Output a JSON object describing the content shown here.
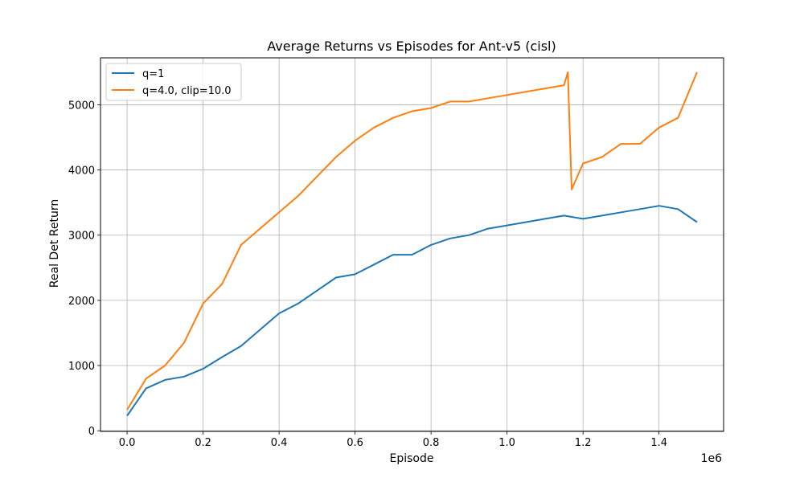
{
  "chart_data": {
    "type": "line",
    "title": "Average Returns vs Episodes for Ant-v5 (cisl)",
    "xlabel": "Episode",
    "ylabel": "Real Det Return",
    "x_offset_label": "1e6",
    "xlim": [
      -70000,
      1570000
    ],
    "ylim": [
      -10,
      5720
    ],
    "x_ticks": [
      0,
      200000,
      400000,
      600000,
      800000,
      1000000,
      1200000,
      1400000
    ],
    "x_tick_labels": [
      "0.0",
      "0.2",
      "0.4",
      "0.6",
      "0.8",
      "1.0",
      "1.2",
      "1.4"
    ],
    "y_ticks": [
      0,
      1000,
      2000,
      3000,
      4000,
      5000
    ],
    "y_tick_labels": [
      "0",
      "1000",
      "2000",
      "3000",
      "4000",
      "5000"
    ],
    "grid": true,
    "legend_position": "top-left",
    "series": [
      {
        "name": "q=1",
        "color": "#1f77b4",
        "x": [
          0,
          50000,
          100000,
          150000,
          200000,
          250000,
          300000,
          350000,
          400000,
          450000,
          500000,
          550000,
          600000,
          650000,
          700000,
          750000,
          800000,
          850000,
          900000,
          950000,
          1000000,
          1050000,
          1100000,
          1150000,
          1200000,
          1250000,
          1300000,
          1350000,
          1400000,
          1450000,
          1500000
        ],
        "y": [
          230,
          650,
          780,
          830,
          950,
          1130,
          1300,
          1550,
          1800,
          1950,
          2150,
          2350,
          2400,
          2550,
          2700,
          2700,
          2850,
          2950,
          3000,
          3100,
          3150,
          3200,
          3250,
          3300,
          3250,
          3300,
          3350,
          3400,
          3450,
          3400,
          3200
        ]
      },
      {
        "name": "q=4.0, clip=10.0",
        "color": "#ff7f0e",
        "x": [
          0,
          50000,
          100000,
          150000,
          200000,
          250000,
          300000,
          350000,
          400000,
          450000,
          500000,
          550000,
          600000,
          650000,
          700000,
          750000,
          800000,
          850000,
          900000,
          950000,
          1000000,
          1050000,
          1100000,
          1150000,
          1160000,
          1170000,
          1200000,
          1250000,
          1300000,
          1350000,
          1400000,
          1450000,
          1500000
        ],
        "y": [
          320,
          800,
          1000,
          1350,
          1950,
          2250,
          2850,
          3100,
          3350,
          3600,
          3900,
          4200,
          4450,
          4650,
          4800,
          4900,
          4950,
          5050,
          5050,
          5100,
          5150,
          5200,
          5250,
          5300,
          5500,
          3700,
          4100,
          4200,
          4400,
          4400,
          4650,
          4800,
          5500
        ]
      }
    ]
  }
}
